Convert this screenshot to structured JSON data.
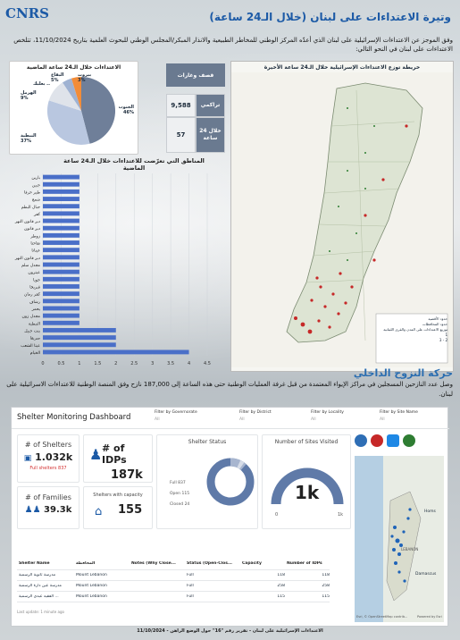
{
  "header": {
    "logo_text": "CNRS",
    "logo_sub": "المجلس الوطني للبحوث العلمية National Council for Scientific Research",
    "title": "وتيرة الاعتداءات على لبنان (خلال الـ24 ساعة)",
    "intro": "وفق الموجز عن الاعتداءات الإسرائيلية على لبنان الذي أعدّه المركز الوطني للمخاطر الطبيعية والانذار المبكر/المجلس الوطني للبحوث العلمية بتاريخ 11/10/2024، تتلخص الاعتداءات على لبنان في النحو التالي:"
  },
  "pie_panel": {
    "title": "الاعتداءات خلال الـ24 ساعة الماضية",
    "slices": [
      {
        "label": "الجنوب",
        "pct": 46,
        "color": "#6f7f99"
      },
      {
        "label": "النبطية",
        "pct": 37,
        "color": "#b9c7e0"
      },
      {
        "label": "الهرمل",
        "pct": 9,
        "color": "#d9dde4"
      },
      {
        "label": "بعلبك",
        "pct": 0,
        "color": "#c7ccd6"
      },
      {
        "label": "البقاع",
        "pct": 5,
        "color": "#9fb2d2"
      },
      {
        "label": "بيروت",
        "pct": 3,
        "color": "#f28c38"
      }
    ],
    "labels": {
      "south": "الجنوب",
      "south_pct": "46%",
      "nabatieh": "النبطية",
      "nabatieh_pct": "37%",
      "hermel": "الهرمل",
      "hermel_pct": "9%",
      "baalbek": "بعلبك ..",
      "bekaa": "البقاع",
      "bekaa_pct": "5%",
      "beirut": "بيروت",
      "beirut_pct": "3%"
    }
  },
  "stats": {
    "header": "قصف وغارات",
    "rows": [
      {
        "label": "تراكمي",
        "value": "9,588"
      },
      {
        "label": "خلال 24 ساعة",
        "value": "57"
      }
    ]
  },
  "chart_data": {
    "type": "bar",
    "title": "المناطق التي تعرّضت للاعتداءات خلال الـ24 ساعة الماضية",
    "orientation": "horizontal",
    "categories": [
      "بارين",
      "جبين",
      "طير حرفا",
      "شمع",
      "جبال البطم",
      "كفر",
      "دير قانون النهر",
      "دير قانون",
      "زوطر",
      "تفاحتا",
      "عيناتا",
      "دير قانون النهر",
      "مجدل سلم",
      "عيترون",
      "جويا",
      "قبريخا",
      "كفر رمان",
      "رشاف",
      "يحمر",
      "مجدل زون",
      "النبطية",
      "بنت جبيل",
      "صريفا",
      "عيتا الشعب",
      "الخيام"
    ],
    "values": [
      1,
      1,
      1,
      1,
      1,
      1,
      1,
      1,
      1,
      1,
      1,
      1,
      1,
      1,
      1,
      1,
      1,
      1,
      1,
      1,
      1,
      2,
      2,
      2,
      4
    ],
    "xlim": [
      0,
      4.5
    ],
    "xticks": [
      "0",
      "0.5",
      "1",
      "1.5",
      "2",
      "2.5",
      "3",
      "3.5",
      "4",
      "4.5"
    ],
    "bar_color": "#4a6fc8",
    "grid": true
  },
  "map": {
    "title": "خريطة توزع الاعتداءات الإسرائيلية خلال الـ24 ساعة الأخيرة",
    "legend_title": "توزيع الاعتداءات على المدن والقرى اللبنانية",
    "legend_items": [
      "حدود الأقضية",
      "حدود المحافظات",
      "1",
      "2 - 3"
    ]
  },
  "displacement": {
    "title": "حركة النزوح الداخلي",
    "text": "وصل عدد النازحين المسجلين في مراكز الإيواء المعتمدة من قبل غرفة العمليات الوطنية حتى هذه الساعة إلى 187,000 نازح وفق المنصة الوطنية للاعتداءات الاسرائيلية على لبنان."
  },
  "dashboard": {
    "name": "Shelter Monitoring Dashboard",
    "filters": [
      {
        "label": "Filter by Governorate",
        "value": "All"
      },
      {
        "label": "Filter by District",
        "value": "All"
      },
      {
        "label": "Filter by Locality",
        "value": "All"
      },
      {
        "label": "Filter by Site Name",
        "value": "All"
      }
    ],
    "shelters": {
      "title": "# of Shelters",
      "value": "1.032k",
      "full": "Full shelters 837"
    },
    "idps": {
      "title": "# of IDPs",
      "value": "187k"
    },
    "families": {
      "title": "# of Families",
      "value": "39.3k"
    },
    "capacity": {
      "title": "Shelters with capacity",
      "value": "155"
    },
    "status": {
      "title": "Shelter Status",
      "items": [
        {
          "label": "Full",
          "value": "837",
          "color": "#5f7aa8"
        },
        {
          "label": "Open",
          "value": "115",
          "color": "#a7b5cf"
        },
        {
          "label": "Closed",
          "value": "24",
          "color": "#d7dde8"
        }
      ]
    },
    "sites": {
      "title": "Number of Sites Visited",
      "value": "1k",
      "min": "0",
      "max": "1k"
    },
    "table": {
      "columns": [
        "Shelter Name",
        "المحافظة",
        "Notes (Why Close...",
        "Status (Open-Clos...",
        "Capacity",
        "Number of IDPs"
      ],
      "rows": [
        [
          "مدرسة ثانوية الرسمية",
          "Mount Lebanon",
          "",
          "Full",
          "118",
          "118"
        ],
        [
          "مدرسة عين دارة الرسمية",
          "Mount Lebanon",
          "",
          "Full",
          "258",
          "258"
        ],
        [
          "الفقيه عبدي الرسمية ...",
          "Mount Lebanon",
          "",
          "Full",
          "115",
          "115"
        ]
      ],
      "updated": "Last update: 1 minute ago"
    },
    "mini_map": {
      "label_homs": "Homs",
      "label_damascus": "Damascus",
      "label_lebanon": "LEBANON",
      "attribution": "Esri, © OpenStreetMap contrib...",
      "powered": "Powered by Esri"
    }
  },
  "footer": "الاعتداءات الإسرائيلية على لبنان - تقرير رقم \"16\" حول الوضع الراهن - 11/10/2024"
}
